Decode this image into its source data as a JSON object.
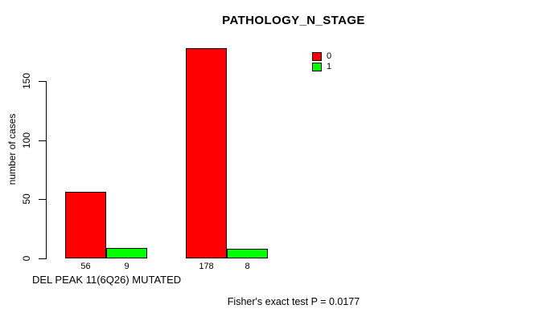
{
  "chart_data": {
    "type": "bar",
    "title": "PATHOLOGY_N_STAGE",
    "ylabel": "number of cases",
    "xlabel": "DEL PEAK 11(6Q26) MUTATED",
    "annotation": "Fisher's exact test P = 0.0177",
    "ylim": [
      0,
      150
    ],
    "yticks": [
      0,
      50,
      100,
      150
    ],
    "grid": false,
    "legend_position": "top-right",
    "series": [
      {
        "name": "0",
        "color": "#ff0000",
        "values": [
          56,
          178
        ]
      },
      {
        "name": "1",
        "color": "#00ff00",
        "values": [
          9,
          8
        ]
      }
    ],
    "bar_value_labels": [
      [
        "56",
        "9"
      ],
      [
        "178",
        "8"
      ]
    ],
    "colors": {
      "axis": "#000000",
      "text": "#000000",
      "background": "#ffffff"
    }
  }
}
